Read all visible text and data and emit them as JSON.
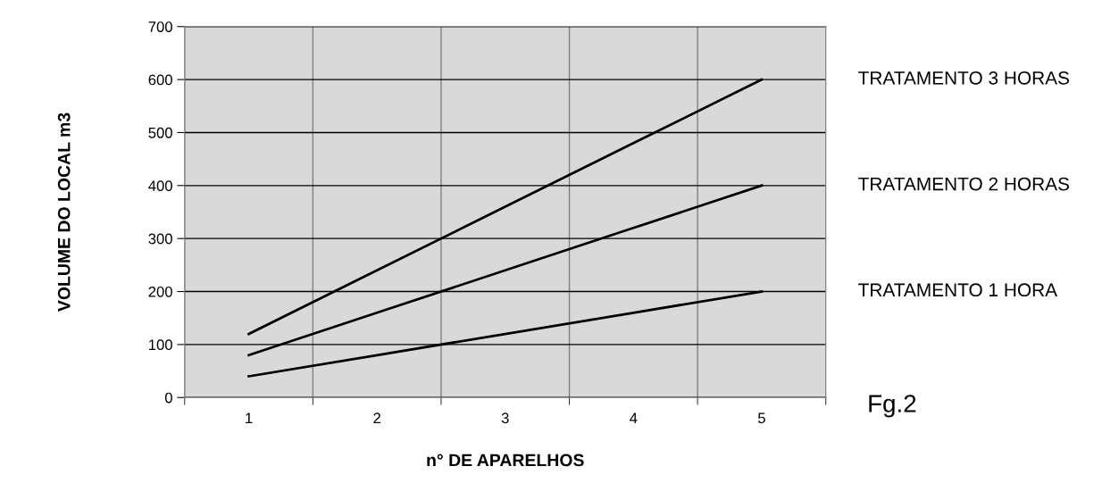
{
  "chart_data": {
    "type": "line",
    "xlabel": "n° DE APARELHOS",
    "ylabel": "VOLUME DO LOCAL m3",
    "categories": [
      "1",
      "2",
      "3",
      "4",
      "5"
    ],
    "series": [
      {
        "name": "TRATAMENTO 3 HORAS",
        "color": "#000000",
        "values": [
          120,
          240,
          360,
          480,
          600
        ]
      },
      {
        "name": "TRATAMENTO 2 HORAS",
        "color": "#000000",
        "values": [
          80,
          160,
          240,
          320,
          400
        ]
      },
      {
        "name": "TRATAMENTO 1 HORA",
        "color": "#000000",
        "values": [
          40,
          80,
          120,
          160,
          200
        ]
      }
    ],
    "ylim": [
      0,
      700
    ],
    "yticks": [
      0,
      100,
      200,
      300,
      400,
      500,
      600,
      700
    ],
    "grid": true,
    "marker": "none",
    "line_style": "solid",
    "annotations": [
      "Fg.2"
    ]
  }
}
